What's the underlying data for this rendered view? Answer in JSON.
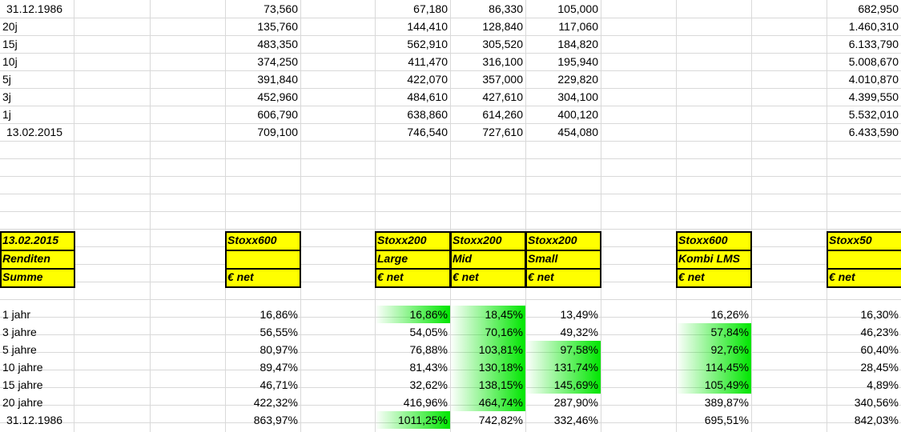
{
  "top_table": [
    {
      "label": "31.12.1986",
      "c1": "73,560",
      "c2": "67,180",
      "c3": "86,330",
      "c4": "105,000",
      "c5": "682,950"
    },
    {
      "label": "20j",
      "c1": "135,760",
      "c2": "144,410",
      "c3": "128,840",
      "c4": "117,060",
      "c5": "1.460,310"
    },
    {
      "label": "15j",
      "c1": "483,350",
      "c2": "562,910",
      "c3": "305,520",
      "c4": "184,820",
      "c5": "6.133,790"
    },
    {
      "label": "10j",
      "c1": "374,250",
      "c2": "411,470",
      "c3": "316,100",
      "c4": "195,940",
      "c5": "5.008,670"
    },
    {
      "label": "5j",
      "c1": "391,840",
      "c2": "422,070",
      "c3": "357,000",
      "c4": "229,820",
      "c5": "4.010,870"
    },
    {
      "label": "3j",
      "c1": "452,960",
      "c2": "484,610",
      "c3": "427,610",
      "c4": "304,100",
      "c5": "4.399,550"
    },
    {
      "label": "1j",
      "c1": "606,790",
      "c2": "638,860",
      "c3": "614,260",
      "c4": "400,120",
      "c5": "5.532,010"
    },
    {
      "label": "13.02.2015",
      "c1": "709,100",
      "c2": "746,540",
      "c3": "727,610",
      "c4": "454,080",
      "c5": "6.433,590"
    }
  ],
  "headers": {
    "a": [
      "13.02.2015",
      "Renditen",
      "Summe"
    ],
    "b": [
      "Stoxx600",
      "",
      "€ net"
    ],
    "c": [
      "Stoxx200",
      "Large",
      "€ net"
    ],
    "d": [
      "Stoxx200",
      "Mid",
      "€ net"
    ],
    "e": [
      "Stoxx200",
      "Small",
      "€ net"
    ],
    "f": [
      "Stoxx600",
      "Kombi LMS",
      "€ net"
    ],
    "g": [
      "Stoxx50",
      "",
      "€ net"
    ]
  },
  "bottom_table": [
    {
      "label": "1 jahr",
      "b": "16,86%",
      "c": "16,86%",
      "d": "18,45%",
      "e": "13,49%",
      "f": "16,26%",
      "g": "16,30%",
      "hl": [
        "c",
        "d"
      ]
    },
    {
      "label": "3 jahre",
      "b": "56,55%",
      "c": "54,05%",
      "d": "70,16%",
      "e": "49,32%",
      "f": "57,84%",
      "g": "46,23%",
      "hl": [
        "d",
        "f"
      ]
    },
    {
      "label": "5 jahre",
      "b": "80,97%",
      "c": "76,88%",
      "d": "103,81%",
      "e": "97,58%",
      "f": "92,76%",
      "g": "60,40%",
      "hl": [
        "d",
        "e",
        "f"
      ]
    },
    {
      "label": "10 jahre",
      "b": "89,47%",
      "c": "81,43%",
      "d": "130,18%",
      "e": "131,74%",
      "f": "114,45%",
      "g": "28,45%",
      "hl": [
        "d",
        "e",
        "f"
      ]
    },
    {
      "label": "15 jahre",
      "b": "46,71%",
      "c": "32,62%",
      "d": "138,15%",
      "e": "145,69%",
      "f": "105,49%",
      "g": "4,89%",
      "hl": [
        "d",
        "e",
        "f"
      ]
    },
    {
      "label": "20 jahre",
      "b": "422,32%",
      "c": "416,96%",
      "d": "464,74%",
      "e": "287,90%",
      "f": "389,87%",
      "g": "340,56%",
      "hl": [
        "d"
      ]
    },
    {
      "label": "31.12.1986",
      "b": "863,97%",
      "c": "1011,25%",
      "d": "742,82%",
      "e": "332,46%",
      "f": "695,51%",
      "g": "842,03%",
      "hl": [
        "c"
      ]
    }
  ],
  "colors": {
    "header_fill": "#ffff00",
    "highlight": "#00e600",
    "gridline": "#d9d9d9"
  }
}
